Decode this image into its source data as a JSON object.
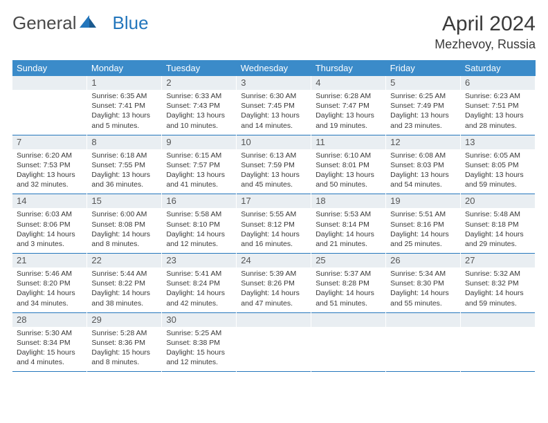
{
  "logo": {
    "text1": "General",
    "text2": "Blue"
  },
  "title": "April 2024",
  "location": "Mezhevoy, Russia",
  "colors": {
    "header_bg": "#3b8bc9",
    "header_text": "#ffffff",
    "daynum_bg": "#e9eef2",
    "rule": "#2376bc",
    "logo_blue": "#2376bc",
    "text": "#333333"
  },
  "weekdays": [
    "Sunday",
    "Monday",
    "Tuesday",
    "Wednesday",
    "Thursday",
    "Friday",
    "Saturday"
  ],
  "weeks": [
    [
      {
        "n": "",
        "sr": "",
        "ss": "",
        "dl": ""
      },
      {
        "n": "1",
        "sr": "Sunrise: 6:35 AM",
        "ss": "Sunset: 7:41 PM",
        "dl": "Daylight: 13 hours and 5 minutes."
      },
      {
        "n": "2",
        "sr": "Sunrise: 6:33 AM",
        "ss": "Sunset: 7:43 PM",
        "dl": "Daylight: 13 hours and 10 minutes."
      },
      {
        "n": "3",
        "sr": "Sunrise: 6:30 AM",
        "ss": "Sunset: 7:45 PM",
        "dl": "Daylight: 13 hours and 14 minutes."
      },
      {
        "n": "4",
        "sr": "Sunrise: 6:28 AM",
        "ss": "Sunset: 7:47 PM",
        "dl": "Daylight: 13 hours and 19 minutes."
      },
      {
        "n": "5",
        "sr": "Sunrise: 6:25 AM",
        "ss": "Sunset: 7:49 PM",
        "dl": "Daylight: 13 hours and 23 minutes."
      },
      {
        "n": "6",
        "sr": "Sunrise: 6:23 AM",
        "ss": "Sunset: 7:51 PM",
        "dl": "Daylight: 13 hours and 28 minutes."
      }
    ],
    [
      {
        "n": "7",
        "sr": "Sunrise: 6:20 AM",
        "ss": "Sunset: 7:53 PM",
        "dl": "Daylight: 13 hours and 32 minutes."
      },
      {
        "n": "8",
        "sr": "Sunrise: 6:18 AM",
        "ss": "Sunset: 7:55 PM",
        "dl": "Daylight: 13 hours and 36 minutes."
      },
      {
        "n": "9",
        "sr": "Sunrise: 6:15 AM",
        "ss": "Sunset: 7:57 PM",
        "dl": "Daylight: 13 hours and 41 minutes."
      },
      {
        "n": "10",
        "sr": "Sunrise: 6:13 AM",
        "ss": "Sunset: 7:59 PM",
        "dl": "Daylight: 13 hours and 45 minutes."
      },
      {
        "n": "11",
        "sr": "Sunrise: 6:10 AM",
        "ss": "Sunset: 8:01 PM",
        "dl": "Daylight: 13 hours and 50 minutes."
      },
      {
        "n": "12",
        "sr": "Sunrise: 6:08 AM",
        "ss": "Sunset: 8:03 PM",
        "dl": "Daylight: 13 hours and 54 minutes."
      },
      {
        "n": "13",
        "sr": "Sunrise: 6:05 AM",
        "ss": "Sunset: 8:05 PM",
        "dl": "Daylight: 13 hours and 59 minutes."
      }
    ],
    [
      {
        "n": "14",
        "sr": "Sunrise: 6:03 AM",
        "ss": "Sunset: 8:06 PM",
        "dl": "Daylight: 14 hours and 3 minutes."
      },
      {
        "n": "15",
        "sr": "Sunrise: 6:00 AM",
        "ss": "Sunset: 8:08 PM",
        "dl": "Daylight: 14 hours and 8 minutes."
      },
      {
        "n": "16",
        "sr": "Sunrise: 5:58 AM",
        "ss": "Sunset: 8:10 PM",
        "dl": "Daylight: 14 hours and 12 minutes."
      },
      {
        "n": "17",
        "sr": "Sunrise: 5:55 AM",
        "ss": "Sunset: 8:12 PM",
        "dl": "Daylight: 14 hours and 16 minutes."
      },
      {
        "n": "18",
        "sr": "Sunrise: 5:53 AM",
        "ss": "Sunset: 8:14 PM",
        "dl": "Daylight: 14 hours and 21 minutes."
      },
      {
        "n": "19",
        "sr": "Sunrise: 5:51 AM",
        "ss": "Sunset: 8:16 PM",
        "dl": "Daylight: 14 hours and 25 minutes."
      },
      {
        "n": "20",
        "sr": "Sunrise: 5:48 AM",
        "ss": "Sunset: 8:18 PM",
        "dl": "Daylight: 14 hours and 29 minutes."
      }
    ],
    [
      {
        "n": "21",
        "sr": "Sunrise: 5:46 AM",
        "ss": "Sunset: 8:20 PM",
        "dl": "Daylight: 14 hours and 34 minutes."
      },
      {
        "n": "22",
        "sr": "Sunrise: 5:44 AM",
        "ss": "Sunset: 8:22 PM",
        "dl": "Daylight: 14 hours and 38 minutes."
      },
      {
        "n": "23",
        "sr": "Sunrise: 5:41 AM",
        "ss": "Sunset: 8:24 PM",
        "dl": "Daylight: 14 hours and 42 minutes."
      },
      {
        "n": "24",
        "sr": "Sunrise: 5:39 AM",
        "ss": "Sunset: 8:26 PM",
        "dl": "Daylight: 14 hours and 47 minutes."
      },
      {
        "n": "25",
        "sr": "Sunrise: 5:37 AM",
        "ss": "Sunset: 8:28 PM",
        "dl": "Daylight: 14 hours and 51 minutes."
      },
      {
        "n": "26",
        "sr": "Sunrise: 5:34 AM",
        "ss": "Sunset: 8:30 PM",
        "dl": "Daylight: 14 hours and 55 minutes."
      },
      {
        "n": "27",
        "sr": "Sunrise: 5:32 AM",
        "ss": "Sunset: 8:32 PM",
        "dl": "Daylight: 14 hours and 59 minutes."
      }
    ],
    [
      {
        "n": "28",
        "sr": "Sunrise: 5:30 AM",
        "ss": "Sunset: 8:34 PM",
        "dl": "Daylight: 15 hours and 4 minutes."
      },
      {
        "n": "29",
        "sr": "Sunrise: 5:28 AM",
        "ss": "Sunset: 8:36 PM",
        "dl": "Daylight: 15 hours and 8 minutes."
      },
      {
        "n": "30",
        "sr": "Sunrise: 5:25 AM",
        "ss": "Sunset: 8:38 PM",
        "dl": "Daylight: 15 hours and 12 minutes."
      },
      {
        "n": "",
        "sr": "",
        "ss": "",
        "dl": ""
      },
      {
        "n": "",
        "sr": "",
        "ss": "",
        "dl": ""
      },
      {
        "n": "",
        "sr": "",
        "ss": "",
        "dl": ""
      },
      {
        "n": "",
        "sr": "",
        "ss": "",
        "dl": ""
      }
    ]
  ]
}
